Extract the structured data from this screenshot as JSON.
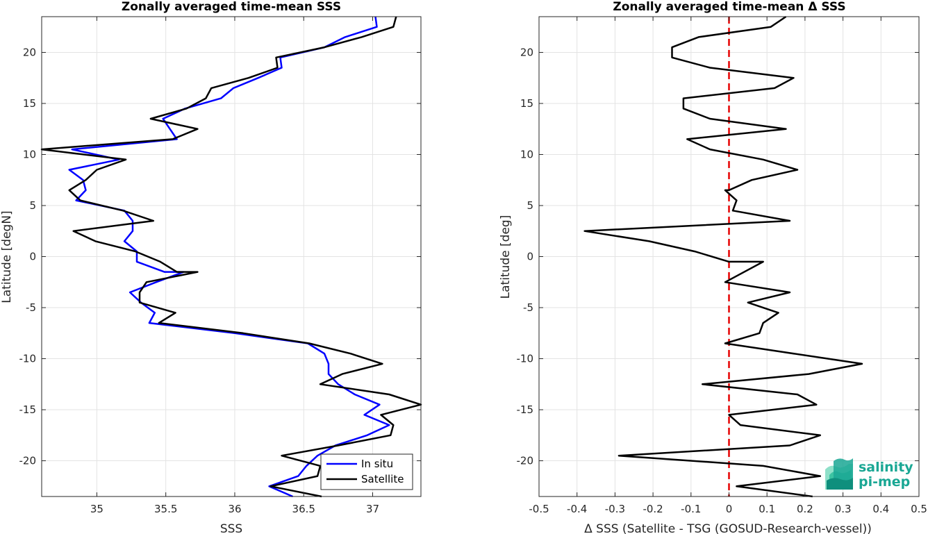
{
  "chart_data": [
    {
      "type": "line",
      "title": "Zonally averaged time-mean SSS",
      "xlabel": "SSS",
      "ylabel": "Latitude [degN]",
      "xlim": [
        34.6,
        37.35
      ],
      "ylim": [
        -23.5,
        23.5
      ],
      "xticks": [
        35,
        35.5,
        36,
        36.5,
        37
      ],
      "xtick_labels": [
        "35",
        "35.5",
        "36",
        "36.5",
        "37"
      ],
      "yticks": [
        -20,
        -15,
        -10,
        -5,
        0,
        5,
        10,
        15,
        20
      ],
      "ytick_labels": [
        "-20",
        "-15",
        "-10",
        "-5",
        "0",
        "5",
        "10",
        "15",
        "20"
      ],
      "grid": true,
      "legend": "bottom-right",
      "series": [
        {
          "name": "In situ",
          "color": "#0000ff",
          "points": [
            [
              37.02,
              23.5
            ],
            [
              37.03,
              22.5
            ],
            [
              36.8,
              21.5
            ],
            [
              36.65,
              20.5
            ],
            [
              36.33,
              19.5
            ],
            [
              36.34,
              18.5
            ],
            [
              36.17,
              17.5
            ],
            [
              35.99,
              16.5
            ],
            [
              35.9,
              15.5
            ],
            [
              35.64,
              14.5
            ],
            [
              35.48,
              13.5
            ],
            [
              35.53,
              12.5
            ],
            [
              35.58,
              11.5
            ],
            [
              34.82,
              10.5
            ],
            [
              35.16,
              9.5
            ],
            [
              34.8,
              8.5
            ],
            [
              34.9,
              7.5
            ],
            [
              34.92,
              6.5
            ],
            [
              34.85,
              5.5
            ],
            [
              35.2,
              4.5
            ],
            [
              35.26,
              3.5
            ],
            [
              35.26,
              2.5
            ],
            [
              35.2,
              1.5
            ],
            [
              35.29,
              0.5
            ],
            [
              35.29,
              -0.5
            ],
            [
              35.49,
              -1.5
            ],
            [
              35.63,
              -1.5
            ],
            [
              35.43,
              -2.5
            ],
            [
              35.24,
              -3.5
            ],
            [
              35.32,
              -4.5
            ],
            [
              35.42,
              -5.5
            ],
            [
              35.38,
              -6.5
            ],
            [
              36.0,
              -7.5
            ],
            [
              36.53,
              -8.5
            ],
            [
              36.65,
              -9.5
            ],
            [
              36.68,
              -10.5
            ],
            [
              36.68,
              -11.5
            ],
            [
              36.75,
              -12.5
            ],
            [
              36.87,
              -13.5
            ],
            [
              37.05,
              -14.5
            ],
            [
              36.94,
              -15.5
            ],
            [
              37.12,
              -16.5
            ],
            [
              36.96,
              -17.5
            ],
            [
              36.73,
              -18.5
            ],
            [
              36.6,
              -19.5
            ],
            [
              36.52,
              -20.5
            ],
            [
              36.46,
              -21.5
            ],
            [
              36.25,
              -22.5
            ],
            [
              36.42,
              -23.5
            ]
          ]
        },
        {
          "name": "Satellite",
          "color": "#000000",
          "points": [
            [
              37.17,
              23.5
            ],
            [
              37.15,
              22.5
            ],
            [
              36.92,
              21.5
            ],
            [
              36.65,
              20.5
            ],
            [
              36.3,
              19.5
            ],
            [
              36.31,
              18.5
            ],
            [
              36.1,
              17.5
            ],
            [
              35.83,
              16.5
            ],
            [
              35.79,
              15.5
            ],
            [
              35.65,
              14.5
            ],
            [
              35.39,
              13.5
            ],
            [
              35.73,
              12.5
            ],
            [
              35.55,
              11.5
            ],
            [
              34.6,
              10.5
            ],
            [
              35.21,
              9.5
            ],
            [
              35.0,
              8.5
            ],
            [
              34.92,
              7.5
            ],
            [
              34.8,
              6.5
            ],
            [
              34.88,
              5.5
            ],
            [
              35.19,
              4.5
            ],
            [
              35.41,
              3.5
            ],
            [
              34.83,
              2.5
            ],
            [
              34.99,
              1.5
            ],
            [
              35.28,
              0.5
            ],
            [
              35.46,
              -0.5
            ],
            [
              35.58,
              -1.5
            ],
            [
              35.73,
              -1.5
            ],
            [
              35.36,
              -2.5
            ],
            [
              35.31,
              -3.5
            ],
            [
              35.31,
              -4.5
            ],
            [
              35.57,
              -5.5
            ],
            [
              35.45,
              -6.5
            ],
            [
              36.06,
              -7.5
            ],
            [
              36.54,
              -8.5
            ],
            [
              36.84,
              -9.5
            ],
            [
              37.07,
              -10.5
            ],
            [
              36.78,
              -11.5
            ],
            [
              36.62,
              -12.5
            ],
            [
              37.12,
              -13.5
            ],
            [
              37.35,
              -14.5
            ],
            [
              37.06,
              -15.5
            ],
            [
              37.15,
              -16.5
            ],
            [
              37.13,
              -17.5
            ],
            [
              36.75,
              -18.5
            ],
            [
              36.34,
              -19.5
            ],
            [
              36.62,
              -20.5
            ],
            [
              36.6,
              -21.5
            ],
            [
              36.26,
              -22.5
            ],
            [
              36.63,
              -23.5
            ]
          ]
        }
      ]
    },
    {
      "type": "line",
      "title": "Zonally averaged time-mean Δ SSS",
      "xlabel": "Δ SSS (Satellite - TSG (GOSUD-Research-vessel))",
      "ylabel": "Latitude [deg]",
      "xlim": [
        -0.5,
        0.5
      ],
      "ylim": [
        -23.5,
        23.5
      ],
      "xticks": [
        -0.5,
        -0.4,
        -0.3,
        -0.2,
        -0.1,
        0,
        0.1,
        0.2,
        0.3,
        0.4,
        0.5
      ],
      "xtick_labels": [
        "-0.5",
        "-0.4",
        "-0.3",
        "-0.2",
        "-0.1",
        "0",
        "0.1",
        "0.2",
        "0.3",
        "0.4",
        "0.5"
      ],
      "yticks": [
        -20,
        -15,
        -10,
        -5,
        0,
        5,
        10,
        15,
        20
      ],
      "ytick_labels": [
        "-20",
        "-15",
        "-10",
        "-5",
        "0",
        "5",
        "10",
        "15",
        "20"
      ],
      "grid": true,
      "reference_line": {
        "x": 0,
        "color": "#e60000",
        "style": "dashed"
      },
      "series": [
        {
          "color": "#000000",
          "points": [
            [
              0.15,
              23.5
            ],
            [
              0.11,
              22.5
            ],
            [
              -0.08,
              21.5
            ],
            [
              -0.15,
              20.5
            ],
            [
              -0.15,
              19.5
            ],
            [
              -0.05,
              18.5
            ],
            [
              0.17,
              17.5
            ],
            [
              0.12,
              16.5
            ],
            [
              -0.12,
              15.5
            ],
            [
              -0.12,
              14.5
            ],
            [
              -0.05,
              13.5
            ],
            [
              0.15,
              12.5
            ],
            [
              -0.11,
              11.5
            ],
            [
              -0.05,
              10.5
            ],
            [
              0.09,
              9.5
            ],
            [
              0.18,
              8.5
            ],
            [
              0.06,
              7.5
            ],
            [
              0.0,
              6.5
            ],
            [
              -0.01,
              6.5
            ],
            [
              0.02,
              5.5
            ],
            [
              0.01,
              4.5
            ],
            [
              0.16,
              3.5
            ],
            [
              -0.38,
              2.5
            ],
            [
              -0.21,
              1.5
            ],
            [
              -0.09,
              0.5
            ],
            [
              0.0,
              -0.5
            ],
            [
              0.09,
              -0.5
            ],
            [
              -0.01,
              -2.5
            ],
            [
              0.16,
              -3.5
            ],
            [
              0.05,
              -4.5
            ],
            [
              0.13,
              -5.5
            ],
            [
              0.09,
              -6.5
            ],
            [
              0.08,
              -7.5
            ],
            [
              -0.01,
              -8.5
            ],
            [
              0.35,
              -10.5
            ],
            [
              0.21,
              -11.5
            ],
            [
              -0.07,
              -12.5
            ],
            [
              0.18,
              -13.5
            ],
            [
              0.23,
              -14.5
            ],
            [
              0.0,
              -15.5
            ],
            [
              0.03,
              -16.5
            ],
            [
              0.24,
              -17.5
            ],
            [
              0.16,
              -18.5
            ],
            [
              -0.29,
              -19.5
            ],
            [
              0.09,
              -20.5
            ],
            [
              0.24,
              -21.5
            ],
            [
              0.02,
              -22.5
            ],
            [
              0.22,
              -23.5
            ]
          ]
        }
      ]
    }
  ],
  "logo": {
    "line1": "salinity",
    "line2": "pi-mep",
    "color": "#1aa794"
  }
}
